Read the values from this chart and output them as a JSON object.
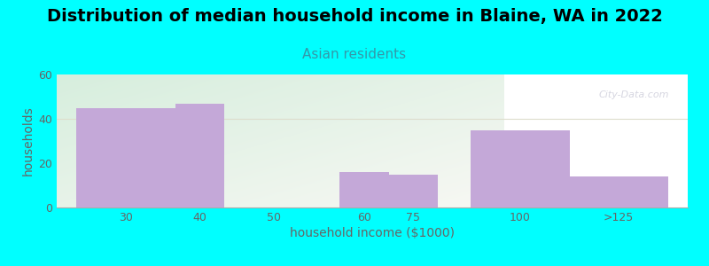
{
  "title": "Distribution of median household income in Blaine, WA in 2022",
  "subtitle": "Asian residents",
  "xlabel": "household income ($1000)",
  "ylabel": "households",
  "background_color": "#00FFFF",
  "bar_color": "#C4A8D8",
  "categories": [
    "30",
    "40",
    "50",
    "60",
    "75",
    "100",
    ">125"
  ],
  "values": [
    45,
    47,
    0,
    16,
    15,
    35,
    14
  ],
  "positions": [
    0,
    1,
    2,
    3,
    4,
    5,
    6
  ],
  "bar_widths": [
    1.0,
    1.0,
    1.0,
    1.0,
    1.0,
    1.0,
    1.0
  ],
  "ylim": [
    0,
    60
  ],
  "yticks": [
    0,
    20,
    40,
    60
  ],
  "title_fontsize": 14,
  "subtitle_fontsize": 11,
  "subtitle_color": "#3399AA",
  "ylabel_color": "#666666",
  "xlabel_color": "#666666",
  "tick_color": "#666666",
  "watermark": "City-Data.com",
  "gradient_top_color": "#d6eedd",
  "gradient_bottom_color": "#f8f8f4"
}
